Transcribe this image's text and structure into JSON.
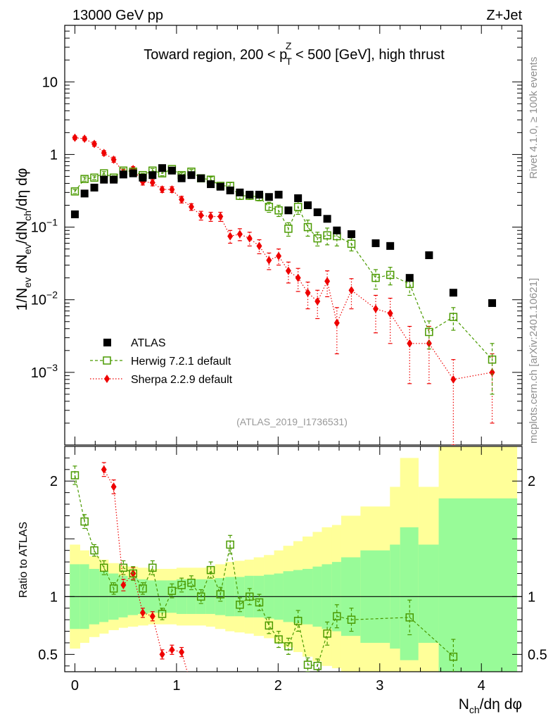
{
  "header": {
    "left": "13000 GeV pp",
    "right": "Z+Jet"
  },
  "side_labels": {
    "rivet": "Rivet 4.1.0, ≥ 100k events",
    "mcplots": "mcplots.cern.ch [arXiv:2401.10621]"
  },
  "chart_data": [
    {
      "panel": "main",
      "type": "scatter",
      "title": "Toward region, 200 < p_T^Z < 500 [GeV], high thrust",
      "title_parts": {
        "before": "Toward region, 200 < p",
        "sub": "T",
        "sup": "Z",
        "after": " < 500 [GeV], high thrust"
      },
      "ylabel": "1/N_ev dN_ev/dN_ch/dη dφ",
      "yscale": "log",
      "ylim": [
        0.0001,
        60
      ],
      "xlim": [
        -0.1,
        4.4
      ],
      "yticks": [
        "10^-3",
        "10^-2",
        "10^-1",
        "1",
        "10"
      ],
      "xticks": [
        "0",
        "1",
        "2",
        "3",
        "4"
      ],
      "watermark": "(ATLAS_2019_I1736531)",
      "legend_position": "bottom-left",
      "series": [
        {
          "name": "ATLAS",
          "color": "#000000",
          "marker": "filled-square",
          "x": [
            0.0,
            0.095,
            0.191,
            0.286,
            0.382,
            0.477,
            0.573,
            0.668,
            0.764,
            0.859,
            0.955,
            1.05,
            1.146,
            1.241,
            1.337,
            1.432,
            1.528,
            1.623,
            1.719,
            1.814,
            1.91,
            2.005,
            2.101,
            2.196,
            2.292,
            2.387,
            2.483,
            2.578,
            2.721,
            2.96,
            3.103,
            3.294,
            3.485,
            3.724,
            4.106
          ],
          "y": [
            0.15,
            0.29,
            0.35,
            0.45,
            0.45,
            0.53,
            0.55,
            0.48,
            0.52,
            0.65,
            0.6,
            0.47,
            0.52,
            0.47,
            0.39,
            0.36,
            0.32,
            0.3,
            0.28,
            0.28,
            0.26,
            0.28,
            0.17,
            0.25,
            0.2,
            0.16,
            0.13,
            0.09,
            0.08,
            0.06,
            0.055,
            0.02,
            0.041,
            0.0125,
            0.009
          ]
        },
        {
          "name": "Herwig 7.2.1 default",
          "color": "#4a9a00",
          "marker": "open-square",
          "line": "dashed",
          "x": [
            0.0,
            0.095,
            0.191,
            0.286,
            0.382,
            0.477,
            0.573,
            0.668,
            0.764,
            0.859,
            0.955,
            1.05,
            1.146,
            1.241,
            1.337,
            1.432,
            1.528,
            1.623,
            1.719,
            1.814,
            1.91,
            2.005,
            2.101,
            2.196,
            2.292,
            2.387,
            2.483,
            2.578,
            2.721,
            2.96,
            3.103,
            3.294,
            3.485,
            3.724,
            4.106
          ],
          "y": [
            0.31,
            0.46,
            0.48,
            0.55,
            0.48,
            0.6,
            0.58,
            0.52,
            0.6,
            0.55,
            0.63,
            0.52,
            0.58,
            0.47,
            0.45,
            0.37,
            0.37,
            0.27,
            0.27,
            0.26,
            0.19,
            0.17,
            0.095,
            0.19,
            0.1,
            0.07,
            0.077,
            0.075,
            0.059,
            0.02,
            0.022,
            0.0165,
            0.0036,
            0.0058,
            0.0015
          ],
          "err": [
            0.02,
            0.03,
            0.03,
            0.03,
            0.03,
            0.04,
            0.04,
            0.03,
            0.04,
            0.04,
            0.04,
            0.04,
            0.04,
            0.04,
            0.04,
            0.03,
            0.04,
            0.03,
            0.03,
            0.03,
            0.03,
            0.03,
            0.02,
            0.04,
            0.025,
            0.015,
            0.02,
            0.02,
            0.012,
            0.006,
            0.006,
            0.005,
            0.0015,
            0.002,
            0.001
          ]
        },
        {
          "name": "Sherpa 2.2.9 default",
          "color": "#ee0000",
          "marker": "filled-diamond",
          "line": "dotted",
          "x": [
            0.0,
            0.095,
            0.191,
            0.286,
            0.382,
            0.477,
            0.573,
            0.668,
            0.764,
            0.859,
            0.955,
            1.05,
            1.146,
            1.241,
            1.337,
            1.432,
            1.528,
            1.623,
            1.719,
            1.814,
            1.91,
            2.005,
            2.101,
            2.196,
            2.292,
            2.387,
            2.483,
            2.578,
            2.721,
            2.96,
            3.103,
            3.294,
            3.485,
            3.724,
            4.106
          ],
          "y": [
            1.7,
            1.65,
            1.4,
            1.05,
            0.85,
            0.57,
            0.63,
            0.42,
            0.41,
            0.33,
            0.33,
            0.24,
            0.19,
            0.145,
            0.14,
            0.14,
            0.075,
            0.08,
            0.07,
            0.055,
            0.035,
            0.04,
            0.025,
            0.02,
            0.0125,
            0.0095,
            0.018,
            0.0048,
            0.0135,
            0.0075,
            0.0065,
            0.0025,
            0.0025,
            0.0008,
            0.001
          ],
          "err": [
            0.1,
            0.1,
            0.1,
            0.08,
            0.07,
            0.05,
            0.05,
            0.04,
            0.04,
            0.03,
            0.03,
            0.025,
            0.02,
            0.02,
            0.02,
            0.02,
            0.015,
            0.015,
            0.015,
            0.012,
            0.009,
            0.01,
            0.008,
            0.007,
            0.005,
            0.004,
            0.007,
            0.003,
            0.006,
            0.004,
            0.004,
            0.0018,
            0.0018,
            0.0007,
            0.0008
          ]
        }
      ]
    },
    {
      "panel": "ratio",
      "type": "scatter",
      "ylabel": "Ratio to ATLAS",
      "xlabel": "N_ch/dη dφ",
      "ylim": [
        0.35,
        2.3
      ],
      "yticks": [
        "0.5",
        "1",
        "2"
      ],
      "xticks": [
        "0",
        "1",
        "2",
        "3",
        "4"
      ],
      "band_colors": {
        "inner": "#98fb98",
        "outer": "#ffff99"
      },
      "band_edges": [
        -0.05,
        0.05,
        0.14,
        0.24,
        0.33,
        0.43,
        0.52,
        0.62,
        0.72,
        0.81,
        0.91,
        1.0,
        1.1,
        1.19,
        1.29,
        1.38,
        1.48,
        1.57,
        1.67,
        1.76,
        1.86,
        1.96,
        2.05,
        2.15,
        2.24,
        2.34,
        2.43,
        2.53,
        2.62,
        2.81,
        3.1,
        3.2,
        3.38,
        3.58,
        3.86,
        4.35
      ],
      "band_inner_lo": [
        0.72,
        0.72,
        0.76,
        0.78,
        0.8,
        0.82,
        0.84,
        0.85,
        0.86,
        0.86,
        0.86,
        0.85,
        0.85,
        0.85,
        0.85,
        0.84,
        0.83,
        0.83,
        0.82,
        0.82,
        0.81,
        0.8,
        0.78,
        0.77,
        0.76,
        0.74,
        0.72,
        0.7,
        0.66,
        0.6,
        0.55,
        0.45,
        0.6,
        0.35,
        0.35
      ],
      "band_inner_hi": [
        1.28,
        1.28,
        1.24,
        1.22,
        1.2,
        1.18,
        1.16,
        1.15,
        1.14,
        1.14,
        1.14,
        1.15,
        1.15,
        1.15,
        1.15,
        1.16,
        1.17,
        1.17,
        1.18,
        1.18,
        1.19,
        1.2,
        1.22,
        1.23,
        1.24,
        1.26,
        1.28,
        1.3,
        1.34,
        1.4,
        1.45,
        1.6,
        1.45,
        1.85,
        1.85
      ],
      "band_outer_lo": [
        0.55,
        0.6,
        0.65,
        0.68,
        0.71,
        0.73,
        0.74,
        0.75,
        0.76,
        0.76,
        0.76,
        0.75,
        0.75,
        0.75,
        0.74,
        0.72,
        0.7,
        0.69,
        0.68,
        0.66,
        0.64,
        0.6,
        0.56,
        0.52,
        0.48,
        0.44,
        0.4,
        0.38,
        0.35,
        0.35,
        0.35,
        0.35,
        0.35,
        0.35,
        0.35
      ],
      "band_outer_hi": [
        1.45,
        1.4,
        1.35,
        1.32,
        1.29,
        1.27,
        1.26,
        1.25,
        1.24,
        1.24,
        1.24,
        1.25,
        1.25,
        1.25,
        1.26,
        1.28,
        1.3,
        1.31,
        1.32,
        1.34,
        1.36,
        1.4,
        1.44,
        1.48,
        1.52,
        1.56,
        1.6,
        1.62,
        1.7,
        1.78,
        1.95,
        2.2,
        1.95,
        2.3,
        2.3
      ],
      "series": [
        {
          "name": "Herwig 7.2.1 default",
          "color": "#4a9a00",
          "marker": "open-square",
          "line": "dashed",
          "x": [
            0.0,
            0.095,
            0.191,
            0.286,
            0.382,
            0.477,
            0.573,
            0.668,
            0.764,
            0.859,
            0.955,
            1.05,
            1.146,
            1.241,
            1.337,
            1.432,
            1.528,
            1.623,
            1.719,
            1.814,
            1.91,
            2.005,
            2.101,
            2.196,
            2.292,
            2.387,
            2.483,
            2.578,
            2.721,
            3.294,
            3.724
          ],
          "y": [
            2.05,
            1.65,
            1.4,
            1.25,
            1.07,
            1.25,
            1.2,
            1.07,
            1.25,
            0.85,
            1.05,
            1.1,
            1.12,
            1.0,
            1.23,
            1.02,
            1.45,
            0.93,
            1.0,
            0.95,
            0.75,
            0.63,
            0.57,
            0.79,
            0.41,
            0.4,
            0.68,
            0.83,
            0.8,
            0.82,
            0.48
          ],
          "err": [
            0.08,
            0.06,
            0.05,
            0.06,
            0.05,
            0.06,
            0.06,
            0.05,
            0.06,
            0.05,
            0.06,
            0.06,
            0.06,
            0.06,
            0.07,
            0.06,
            0.08,
            0.06,
            0.07,
            0.07,
            0.07,
            0.07,
            0.07,
            0.09,
            0.06,
            0.06,
            0.1,
            0.1,
            0.1,
            0.15,
            0.15
          ]
        },
        {
          "name": "Sherpa 2.2.9 default",
          "color": "#ee0000",
          "marker": "filled-diamond",
          "line": "dotted",
          "x": [
            0.286,
            0.382,
            0.477,
            0.573,
            0.668,
            0.764,
            0.859,
            0.955,
            1.05
          ],
          "y": [
            2.1,
            1.95,
            1.1,
            1.2,
            0.86,
            0.83,
            0.5,
            0.54,
            0.52
          ],
          "err": [
            0.06,
            0.06,
            0.05,
            0.05,
            0.04,
            0.04,
            0.04,
            0.04,
            0.04
          ],
          "extends_below_axis_at_x": 1.146
        }
      ]
    }
  ]
}
